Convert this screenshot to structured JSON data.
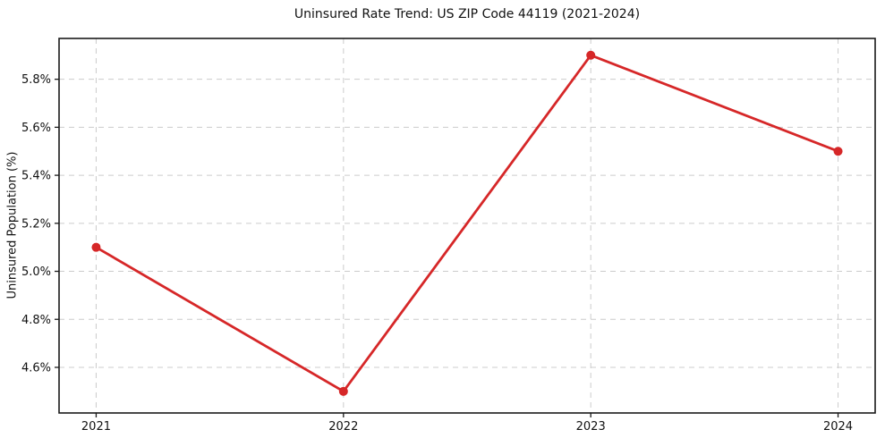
{
  "chart_data": {
    "type": "line",
    "title": "Uninsured Rate Trend: US ZIP Code 44119 (2021-2024)",
    "xlabel": "",
    "ylabel": "Uninsured Population (%)",
    "x": [
      2021,
      2022,
      2023,
      2024
    ],
    "x_tick_labels": [
      "2021",
      "2022",
      "2023",
      "2024"
    ],
    "series": [
      {
        "values": [
          5.1,
          4.5,
          5.9,
          5.5
        ],
        "color": "#d62728",
        "marker": "circle"
      }
    ],
    "yticks": [
      4.6,
      4.8,
      5.0,
      5.2,
      5.4,
      5.6,
      5.8
    ],
    "y_tick_labels": [
      "4.6%",
      "4.8%",
      "5.0%",
      "5.2%",
      "5.4%",
      "5.6%",
      "5.8%"
    ],
    "xlim": [
      2020.85,
      2024.15
    ],
    "ylim": [
      4.41,
      5.97
    ],
    "grid": true,
    "grid_style": "dashed",
    "legend_position": "none"
  },
  "style": {
    "line_color": "#d62728",
    "marker_color": "#d62728",
    "grid_color": "#cccccc",
    "axis_color": "#1a1a1a",
    "text_color": "#111111",
    "background_color": "#ffffff"
  }
}
